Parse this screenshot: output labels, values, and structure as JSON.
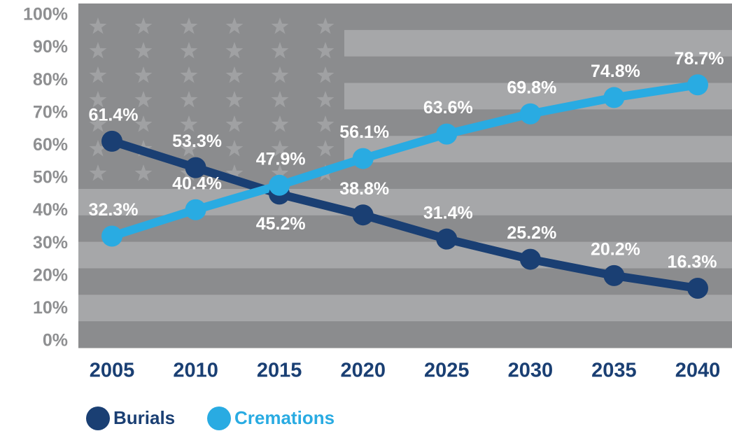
{
  "chart_data": {
    "type": "line",
    "categories": [
      "2005",
      "2010",
      "2015",
      "2020",
      "2025",
      "2030",
      "2035",
      "2040"
    ],
    "series": [
      {
        "name": "Burials",
        "color": "#1a3f73",
        "values": [
          61.4,
          53.3,
          45.2,
          38.8,
          31.4,
          25.2,
          20.2,
          16.3
        ],
        "value_labels": [
          "61.4%",
          "53.3%",
          "45.2%",
          "38.8%",
          "31.4%",
          "25.2%",
          "20.2%",
          "16.3%"
        ]
      },
      {
        "name": "Cremations",
        "color": "#29abe2",
        "values": [
          32.3,
          40.4,
          47.9,
          56.1,
          63.6,
          69.8,
          74.8,
          78.7
        ],
        "value_labels": [
          "32.3%",
          "40.4%",
          "47.9%",
          "56.1%",
          "63.6%",
          "69.8%",
          "74.8%",
          "78.7%"
        ]
      }
    ],
    "ylim": [
      0,
      100
    ],
    "yticks": [
      {
        "value": 0,
        "label": "0%"
      },
      {
        "value": 10,
        "label": "10%"
      },
      {
        "value": 20,
        "label": "20%"
      },
      {
        "value": 30,
        "label": "30%"
      },
      {
        "value": 40,
        "label": "40%"
      },
      {
        "value": 50,
        "label": "50%"
      },
      {
        "value": 60,
        "label": "60%"
      },
      {
        "value": 70,
        "label": "70%"
      },
      {
        "value": 80,
        "label": "80%"
      },
      {
        "value": 90,
        "label": "90%"
      },
      {
        "value": 100,
        "label": "100%"
      }
    ]
  }
}
